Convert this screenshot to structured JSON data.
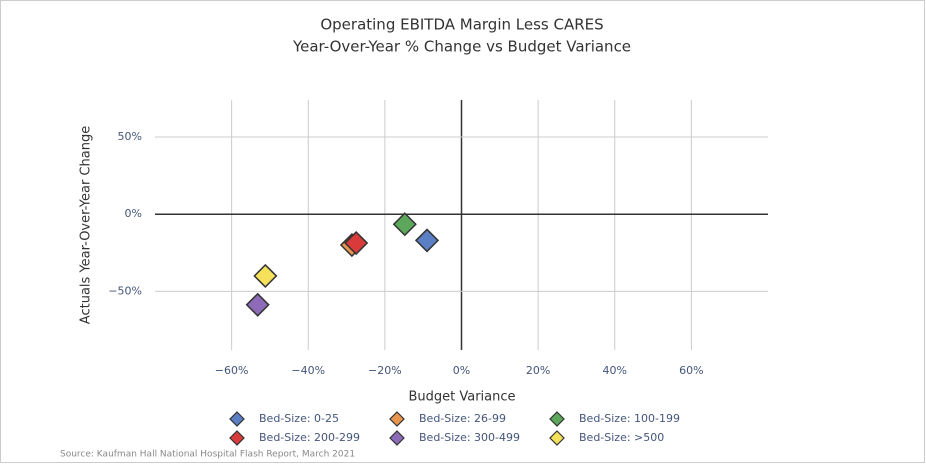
{
  "chart_data": {
    "type": "scatter",
    "title": "Operating EBITDA Margin Less CARES",
    "subtitle": "Year-Over-Year % Change vs Budget Variance",
    "x_label": "Budget Variance",
    "y_label": "Actuals Year-Over-Year Change",
    "source": "Source: Kaufman Hall National Hospital Flash Report, March 2021",
    "xlim": [
      -80,
      80
    ],
    "ylim": [
      -88,
      74
    ],
    "xticks": [
      {
        "value": -60,
        "label": "−60%"
      },
      {
        "value": -40,
        "label": "−40%"
      },
      {
        "value": -20,
        "label": "−20%"
      },
      {
        "value": 0,
        "label": "0%"
      },
      {
        "value": 20,
        "label": "20%"
      },
      {
        "value": 40,
        "label": "40%"
      },
      {
        "value": 60,
        "label": "60%"
      }
    ],
    "yticks": [
      {
        "value": -50,
        "label": "−50%"
      },
      {
        "value": 0,
        "label": "0%"
      },
      {
        "value": 50,
        "label": "50%"
      }
    ],
    "grid": true,
    "series": [
      {
        "name": "Bed-Size: 0-25",
        "color": "#5b7fc4",
        "x": [
          -9
        ],
        "values": [
          -17
        ]
      },
      {
        "name": "Bed-Size: 26-99",
        "color": "#e8954f",
        "x": [
          -28.6
        ],
        "values": [
          -20
        ]
      },
      {
        "name": "Bed-Size: 100-199",
        "color": "#5ca75c",
        "x": [
          -14.8
        ],
        "values": [
          -6.5
        ]
      },
      {
        "name": "Bed-Size: 200-299",
        "color": "#d93a3a",
        "x": [
          -27.5
        ],
        "values": [
          -18.7
        ]
      },
      {
        "name": "Bed-Size: 300-499",
        "color": "#8e6bb8",
        "x": [
          -53.2
        ],
        "values": [
          -58.7
        ]
      },
      {
        "name": "Bed-Size: >500",
        "color": "#f5e15a",
        "x": [
          -51.2
        ],
        "values": [
          -40
        ]
      }
    ]
  }
}
